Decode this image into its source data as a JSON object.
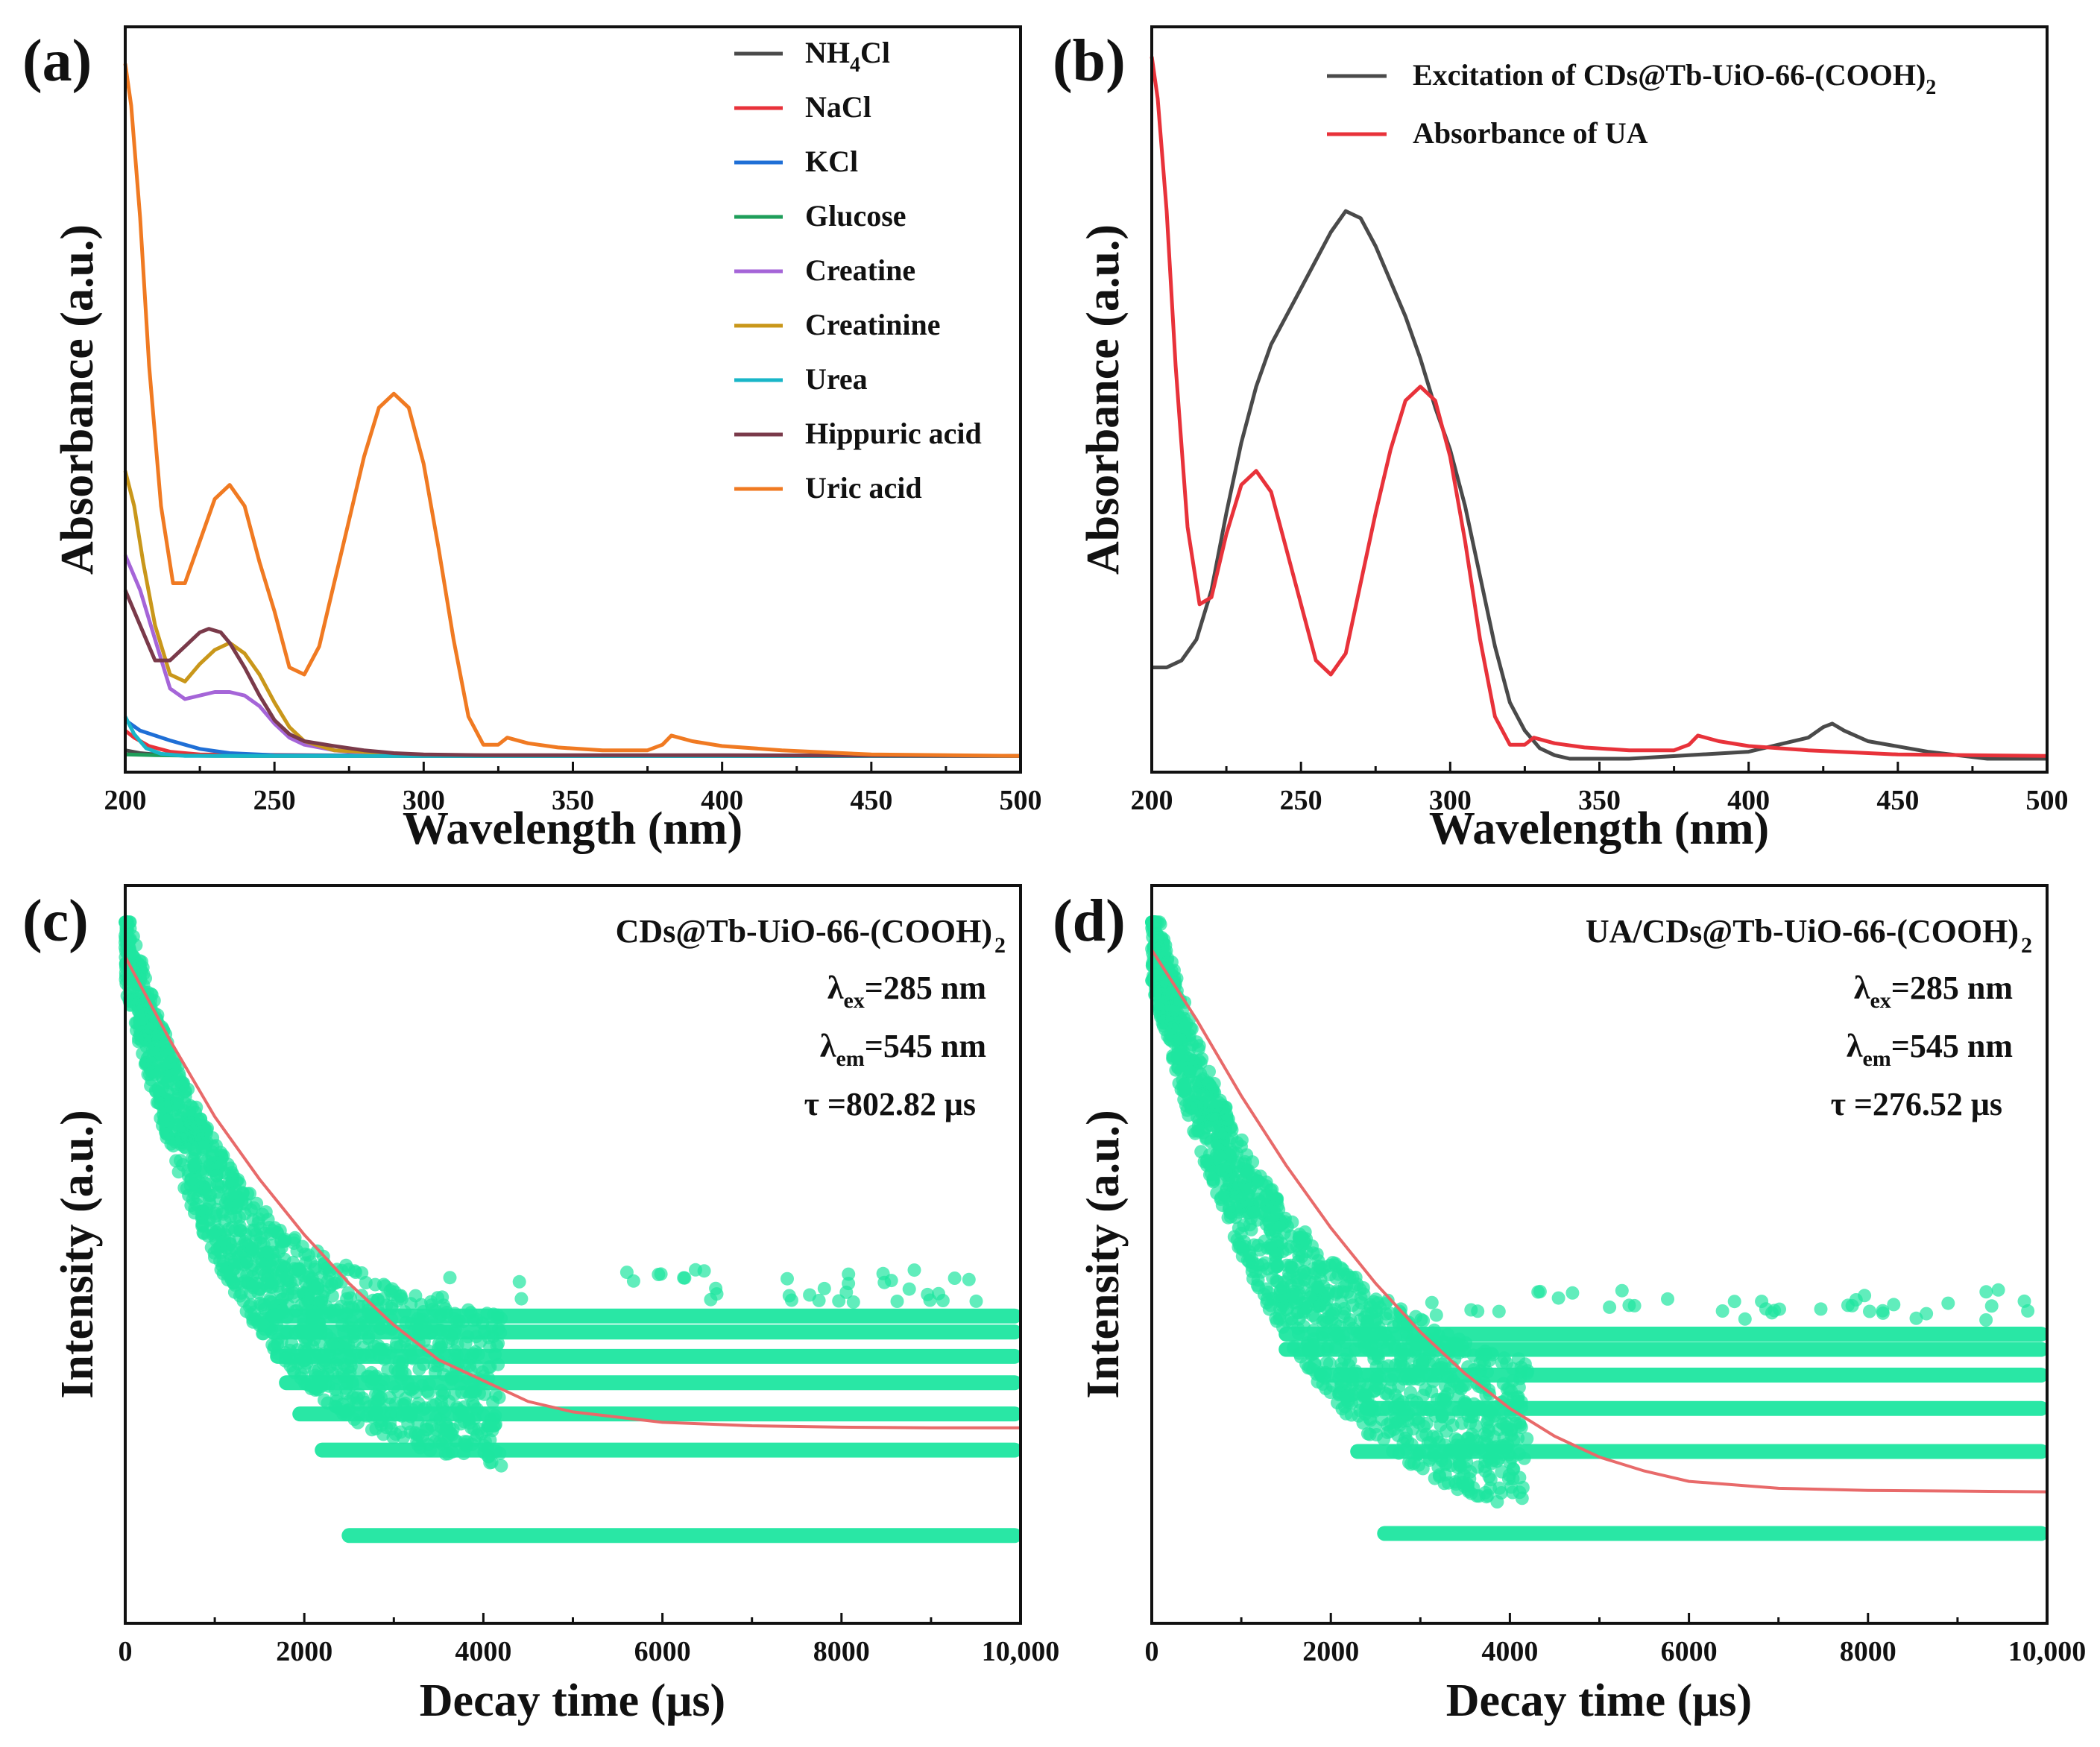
{
  "figure": {
    "panels": [
      "(a)",
      "(b)",
      "(c)",
      "(d)"
    ]
  },
  "chart_data": [
    {
      "panel": "(a)",
      "type": "line",
      "xlabel": "Wavelength (nm)",
      "ylabel": "Absorbance (a.u.)",
      "xlim": [
        200,
        500
      ],
      "ylim": [
        0,
        1
      ],
      "xticks": [
        "200",
        "250",
        "300",
        "350",
        "400",
        "450",
        "500"
      ],
      "legend_position": "top-right",
      "series": [
        {
          "name": "NH4Cl",
          "label_main": "NH",
          "label_sub": "4",
          "label_tail": "Cl",
          "color": "#4a4a4a",
          "x": [
            200,
            205,
            210,
            220,
            240,
            300,
            400,
            500
          ],
          "y": [
            0.012,
            0.008,
            0.006,
            0.005,
            0.004,
            0.004,
            0.004,
            0.004
          ]
        },
        {
          "name": "NaCl",
          "color": "#e8323a",
          "x": [
            200,
            203,
            208,
            215,
            225,
            300,
            500
          ],
          "y": [
            0.04,
            0.03,
            0.018,
            0.01,
            0.006,
            0.004,
            0.004
          ]
        },
        {
          "name": "KCl",
          "color": "#1f6fd6",
          "x": [
            200,
            205,
            215,
            225,
            235,
            250,
            300,
            500
          ],
          "y": [
            0.055,
            0.04,
            0.026,
            0.014,
            0.008,
            0.005,
            0.004,
            0.004
          ]
        },
        {
          "name": "Glucose",
          "color": "#1e9e5a",
          "x": [
            200,
            210,
            230,
            300,
            500
          ],
          "y": [
            0.006,
            0.005,
            0.004,
            0.004,
            0.004
          ]
        },
        {
          "name": "Creatine",
          "color": "#a565d8",
          "x": [
            200,
            205,
            210,
            215,
            220,
            225,
            230,
            235,
            240,
            245,
            250,
            255,
            260,
            270,
            280,
            300,
            500
          ],
          "y": [
            0.29,
            0.24,
            0.17,
            0.1,
            0.085,
            0.09,
            0.095,
            0.095,
            0.09,
            0.075,
            0.05,
            0.03,
            0.02,
            0.012,
            0.008,
            0.005,
            0.004
          ]
        },
        {
          "name": "Creatinine",
          "color": "#c9971a",
          "x": [
            200,
            203,
            206,
            210,
            215,
            220,
            225,
            230,
            235,
            240,
            245,
            250,
            255,
            260,
            270,
            300,
            500
          ],
          "y": [
            0.41,
            0.36,
            0.28,
            0.19,
            0.12,
            0.11,
            0.135,
            0.155,
            0.165,
            0.15,
            0.12,
            0.08,
            0.045,
            0.025,
            0.012,
            0.005,
            0.004
          ]
        },
        {
          "name": "Urea",
          "color": "#19b6c8",
          "x": [
            200,
            203,
            207,
            212,
            220,
            240,
            500
          ],
          "y": [
            0.06,
            0.035,
            0.015,
            0.007,
            0.004,
            0.004,
            0.004
          ]
        },
        {
          "name": "Hippuric acid",
          "color": "#7a3a4a",
          "x": [
            200,
            205,
            210,
            215,
            220,
            225,
            228,
            232,
            235,
            240,
            245,
            250,
            255,
            260,
            270,
            280,
            290,
            300,
            320,
            350,
            400,
            500
          ],
          "y": [
            0.24,
            0.19,
            0.14,
            0.14,
            0.16,
            0.18,
            0.185,
            0.18,
            0.165,
            0.13,
            0.09,
            0.055,
            0.035,
            0.025,
            0.018,
            0.012,
            0.008,
            0.006,
            0.005,
            0.005,
            0.005,
            0.004
          ]
        },
        {
          "name": "Uric acid",
          "color": "#f07a22",
          "x": [
            200,
            202,
            205,
            208,
            212,
            216,
            220,
            225,
            230,
            235,
            240,
            245,
            250,
            255,
            260,
            265,
            270,
            275,
            280,
            285,
            290,
            295,
            300,
            305,
            310,
            315,
            320,
            325,
            328,
            335,
            345,
            360,
            375,
            380,
            383,
            390,
            400,
            420,
            450,
            500
          ],
          "y": [
            0.99,
            0.93,
            0.77,
            0.56,
            0.36,
            0.25,
            0.25,
            0.31,
            0.37,
            0.39,
            0.36,
            0.28,
            0.21,
            0.13,
            0.12,
            0.16,
            0.25,
            0.34,
            0.43,
            0.5,
            0.52,
            0.5,
            0.42,
            0.3,
            0.17,
            0.06,
            0.02,
            0.02,
            0.03,
            0.022,
            0.016,
            0.012,
            0.012,
            0.02,
            0.033,
            0.025,
            0.018,
            0.012,
            0.006,
            0.004
          ]
        }
      ]
    },
    {
      "panel": "(b)",
      "type": "line",
      "xlabel": "Wavelength (nm)",
      "ylabel": "Absorbance (a.u.)",
      "xlim": [
        200,
        500
      ],
      "ylim": [
        0,
        1
      ],
      "xticks": [
        "200",
        "250",
        "300",
        "350",
        "400",
        "450",
        "500"
      ],
      "legend_position": "top-right",
      "series": [
        {
          "name": "Excitation of CDs@Tb-UiO-66-(COOH)2",
          "label_main": "Excitation of CDs@Tb-UiO-66-(COOH)",
          "label_sub": "2",
          "color": "#4a4a4a",
          "x": [
            200,
            205,
            210,
            215,
            220,
            225,
            230,
            235,
            240,
            245,
            250,
            255,
            260,
            265,
            270,
            275,
            280,
            285,
            290,
            295,
            300,
            305,
            310,
            315,
            320,
            325,
            330,
            335,
            340,
            350,
            360,
            380,
            400,
            420,
            425,
            428,
            432,
            440,
            460,
            480,
            500
          ],
          "y": [
            0.13,
            0.13,
            0.14,
            0.17,
            0.24,
            0.35,
            0.45,
            0.53,
            0.59,
            0.63,
            0.67,
            0.71,
            0.75,
            0.78,
            0.77,
            0.73,
            0.68,
            0.63,
            0.57,
            0.5,
            0.44,
            0.36,
            0.26,
            0.16,
            0.08,
            0.04,
            0.015,
            0.005,
            0.0,
            0.0,
            0.0,
            0.005,
            0.01,
            0.03,
            0.045,
            0.05,
            0.04,
            0.025,
            0.01,
            0.0,
            0.0
          ]
        },
        {
          "name": "Absorbance of UA",
          "color": "#e8323a",
          "x": [
            200,
            202,
            205,
            208,
            212,
            216,
            220,
            225,
            230,
            235,
            240,
            245,
            250,
            255,
            260,
            265,
            270,
            275,
            280,
            285,
            290,
            295,
            300,
            305,
            310,
            315,
            320,
            325,
            328,
            335,
            345,
            360,
            375,
            380,
            383,
            390,
            400,
            420,
            450,
            500
          ],
          "y": [
            1.0,
            0.94,
            0.78,
            0.56,
            0.33,
            0.22,
            0.23,
            0.32,
            0.39,
            0.41,
            0.38,
            0.3,
            0.22,
            0.14,
            0.12,
            0.15,
            0.25,
            0.35,
            0.44,
            0.51,
            0.53,
            0.51,
            0.43,
            0.31,
            0.17,
            0.06,
            0.02,
            0.02,
            0.03,
            0.022,
            0.016,
            0.012,
            0.012,
            0.02,
            0.033,
            0.025,
            0.018,
            0.012,
            0.006,
            0.004
          ]
        }
      ]
    },
    {
      "panel": "(c)",
      "type": "scatter",
      "xlabel": "Decay time (μs)",
      "ylabel": "Intensity (a.u.)",
      "xlim": [
        0,
        10000
      ],
      "ylim": [
        0,
        1
      ],
      "xticks": [
        "0",
        "2000",
        "4000",
        "6000",
        "8000",
        "10,000"
      ],
      "sample": {
        "name": "CDs@Tb-UiO-66-(COOH)",
        "sub": "2"
      },
      "excitation": {
        "symbol": "λ",
        "sub": "ex",
        "value": "=285 nm"
      },
      "emission": {
        "symbol": "λ",
        "sub": "em",
        "value": "=545 nm"
      },
      "lifetime": "τ =802.82 μs",
      "lifetime_us": 802.82,
      "scatter_color": "#1ee6a0",
      "fit_color": "#e86a6a",
      "decay": {
        "y0": 0.94,
        "plateau": 0.26,
        "tau_plot": 1250
      },
      "levels": [
        0.107,
        0.23,
        0.282,
        0.327,
        0.365,
        0.4,
        0.423
      ],
      "level_starts": [
        2500,
        2200,
        1950,
        1800,
        1700,
        1650,
        1650
      ],
      "fit": {
        "x": [
          0,
          500,
          1000,
          1500,
          2000,
          2500,
          3000,
          3500,
          4000,
          4500,
          5000,
          6000,
          7000,
          8000,
          9000,
          10000
        ],
        "y": [
          0.94,
          0.82,
          0.71,
          0.62,
          0.54,
          0.47,
          0.41,
          0.36,
          0.33,
          0.3,
          0.285,
          0.27,
          0.265,
          0.263,
          0.262,
          0.262
        ]
      }
    },
    {
      "panel": "(d)",
      "type": "scatter",
      "xlabel": "Decay time (μs)",
      "ylabel": "Intensity (a.u.)",
      "xlim": [
        0,
        10000
      ],
      "ylim": [
        0,
        1
      ],
      "xticks": [
        "0",
        "2000",
        "4000",
        "6000",
        "8000",
        "10,000"
      ],
      "sample": {
        "name": "UA/CDs@Tb-UiO-66-(COOH)",
        "sub": "2"
      },
      "excitation": {
        "symbol": "λ",
        "sub": "ex",
        "value": "=285 nm"
      },
      "emission": {
        "symbol": "λ",
        "sub": "em",
        "value": "=545 nm"
      },
      "lifetime": "τ =276.52 μs",
      "lifetime_us": 276.52,
      "scatter_color": "#1ee6a0",
      "fit_color": "#e86a6a",
      "decay": {
        "y0": 0.95,
        "plateau": 0.17,
        "tau_plot": 1500
      },
      "levels": [
        0.11,
        0.228,
        0.29,
        0.338,
        0.375,
        0.397
      ],
      "level_starts": [
        2600,
        2300,
        2400,
        1900,
        1500,
        1500
      ],
      "fit": {
        "x": [
          0,
          500,
          1000,
          1500,
          2000,
          2500,
          3000,
          3500,
          4000,
          4500,
          5000,
          5500,
          6000,
          7000,
          8000,
          9000,
          10000
        ],
        "y": [
          0.95,
          0.85,
          0.74,
          0.64,
          0.55,
          0.47,
          0.4,
          0.34,
          0.29,
          0.25,
          0.22,
          0.2,
          0.185,
          0.175,
          0.172,
          0.171,
          0.17
        ]
      }
    }
  ]
}
